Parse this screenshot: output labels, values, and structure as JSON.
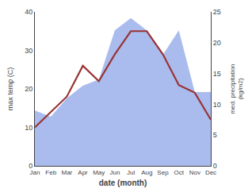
{
  "chart_data": {
    "type": "line",
    "categories": [
      "Jan",
      "Feb",
      "Mar",
      "Apr",
      "May",
      "Jun",
      "Jul",
      "Aug",
      "Sep",
      "Oct",
      "Nov",
      "Dec"
    ],
    "series": [
      {
        "type": "area",
        "axis": "y2",
        "color": "#aabbee",
        "values": [
          9,
          8,
          11,
          13,
          14,
          22,
          24,
          22,
          18,
          22,
          12,
          12
        ]
      },
      {
        "type": "line",
        "color": "#993333",
        "values": [
          10,
          14,
          18,
          26,
          22,
          29,
          35,
          35,
          29,
          21,
          19,
          12
        ]
      }
    ],
    "xlabel": "date (month)",
    "ylabel": "max temp (C)",
    "y2label": "med. precipitation\n(kg/m2)",
    "ylim": [
      0,
      40
    ],
    "yticks": [
      0,
      10,
      20,
      30,
      40
    ],
    "y2lim": [
      0,
      25
    ],
    "y2ticks": [
      0,
      5,
      10,
      15,
      20,
      25
    ],
    "grid": false
  }
}
